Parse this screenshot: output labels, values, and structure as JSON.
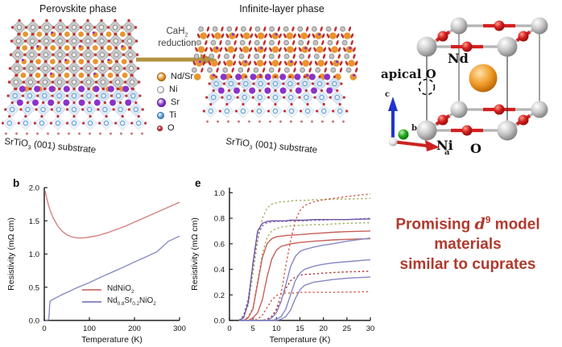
{
  "top": {
    "perovskite_title": "Perovskite phase",
    "infinite_title": "Infinite-layer phase",
    "substrate_label": "SrTiO<sub>3</sub> (001) substrate",
    "reaction": {
      "formula": "CaH<sub>2</sub>",
      "word": "reduction",
      "arrow_color": "#b3913f"
    },
    "legend": [
      {
        "name": "Nd/Sr",
        "color": "#e8952e",
        "edge": "#a05c08",
        "size": 9
      },
      {
        "name": "Ni",
        "color": "#f4f4f4",
        "edge": "#8f8f8f",
        "size": 7
      },
      {
        "name": "Sr",
        "color": "#8a33cc",
        "edge": "#55198c",
        "size": 9
      },
      {
        "name": "Ti",
        "color": "#5b9bd5",
        "edge": "#2a6ab8",
        "size": 7
      },
      {
        "name": "O",
        "color": "#c03030",
        "edge": "#8f1a1a",
        "size": 5
      }
    ],
    "unit_cell": {
      "labels": {
        "apical": "apical O",
        "nd": "Nd",
        "ni": "Ni",
        "o": "O",
        "axis_a": "a",
        "axis_b": "b",
        "axis_c": "c"
      },
      "colors": {
        "nd": "#f09a28",
        "ni": "#c9c9c9",
        "o": "#d42020",
        "axis_a": "#cc2222",
        "axis_b": "#22aa22",
        "axis_c": "#2233cc"
      }
    }
  },
  "chart_data": [
    {
      "type": "line",
      "panel": "b",
      "xlabel": "Temperature (K)",
      "ylabel": "Resistivity (mΩ cm)",
      "xlim": [
        0,
        300
      ],
      "ylim": [
        0,
        2
      ],
      "xticks": [
        0,
        100,
        200,
        300
      ],
      "xtick_labels": [
        "0",
        "100",
        "200",
        "300"
      ],
      "yticks": [
        0,
        0.5,
        1,
        1.5,
        2
      ],
      "ytick_labels": [
        "0.0",
        "0.5",
        "1.0",
        "1.5",
        "2.0"
      ],
      "grid": false,
      "legend": true,
      "legend_position": "lower right",
      "series": [
        {
          "name": "NdNiO<sub>2</sub>",
          "color": "#d4827e",
          "style": "solid",
          "x": [
            2,
            5,
            10,
            15,
            20,
            30,
            40,
            50,
            60,
            70,
            80,
            90,
            100,
            120,
            140,
            160,
            180,
            200,
            220,
            240,
            260,
            280,
            300
          ],
          "y": [
            1.95,
            1.85,
            1.72,
            1.62,
            1.54,
            1.42,
            1.34,
            1.29,
            1.26,
            1.245,
            1.24,
            1.245,
            1.255,
            1.28,
            1.32,
            1.37,
            1.42,
            1.48,
            1.54,
            1.6,
            1.66,
            1.72,
            1.78
          ]
        },
        {
          "name": "Nd<sub>0.8</sub>Sr<sub>0.2</sub>NiO<sub>2</sub>",
          "color": "#8a8ec4",
          "style": "solid",
          "x": [
            2,
            5,
            8,
            10,
            11,
            12,
            13,
            15,
            20,
            30,
            40,
            50,
            75,
            100,
            125,
            150,
            175,
            200,
            225,
            250,
            275,
            300
          ],
          "y": [
            0.004,
            0.004,
            0.006,
            0.03,
            0.12,
            0.24,
            0.29,
            0.305,
            0.32,
            0.355,
            0.39,
            0.42,
            0.5,
            0.57,
            0.65,
            0.725,
            0.8,
            0.88,
            0.955,
            1.035,
            1.19,
            1.27
          ]
        }
      ]
    },
    {
      "type": "line",
      "panel": "e",
      "xlabel": "Temperature (K)",
      "ylabel": "Resistivity (mΩ cm)",
      "xlim": [
        0,
        30
      ],
      "ylim": [
        0,
        1.04
      ],
      "xticks": [
        0,
        5,
        10,
        15,
        20,
        25,
        30
      ],
      "xtick_labels": [
        "0",
        "5",
        "10",
        "15",
        "20",
        "25",
        "30"
      ],
      "yticks": [
        0,
        0.2,
        0.4,
        0.6,
        0.8,
        1.0
      ],
      "ytick_labels": [
        "0.0",
        "0.2",
        "0.4",
        "0.6",
        "0.8",
        "1.0"
      ],
      "grid": false,
      "legend": false,
      "x": [
        2,
        3,
        4,
        5,
        6,
        7,
        8,
        9,
        10,
        11,
        12,
        13,
        14,
        15,
        16,
        18,
        20,
        22,
        25,
        30
      ],
      "series": [
        {
          "id": "dashed-green-1",
          "color": "#a0ae5c",
          "style": "dashed",
          "y": [
            0,
            0.03,
            0.12,
            0.37,
            0.62,
            0.8,
            0.88,
            0.91,
            0.92,
            0.93,
            0.93,
            0.935,
            0.94,
            0.94,
            0.94,
            0.945,
            0.945,
            0.95,
            0.95,
            0.955
          ]
        },
        {
          "id": "dashed-purple-1",
          "color": "#8a6ab8",
          "style": "dashed",
          "y": [
            0,
            0.04,
            0.17,
            0.42,
            0.67,
            0.74,
            0.765,
            0.77,
            0.775,
            0.775,
            0.775,
            0.78,
            0.78,
            0.78,
            0.78,
            0.785,
            0.785,
            0.79,
            0.79,
            0.8
          ]
        },
        {
          "id": "solid-purple-1",
          "color": "#6f55a0",
          "style": "solid",
          "y": [
            0,
            0.02,
            0.14,
            0.45,
            0.7,
            0.76,
            0.775,
            0.78,
            0.78,
            0.78,
            0.78,
            0.785,
            0.785,
            0.785,
            0.785,
            0.79,
            0.79,
            0.79,
            0.79,
            0.795
          ]
        },
        {
          "id": "dashed-green-2",
          "color": "#a0ae5c",
          "style": "dashed",
          "y": [
            0,
            0,
            0.03,
            0.1,
            0.31,
            0.52,
            0.65,
            0.7,
            0.72,
            0.73,
            0.735,
            0.74,
            0.74,
            0.745,
            0.745,
            0.75,
            0.75,
            0.755,
            0.76,
            0.765
          ]
        },
        {
          "id": "solid-red-1",
          "color": "#c65f5a",
          "style": "solid",
          "y": [
            0,
            0,
            0.02,
            0.09,
            0.29,
            0.49,
            0.6,
            0.64,
            0.655,
            0.66,
            0.665,
            0.667,
            0.67,
            0.672,
            0.675,
            0.68,
            0.685,
            0.69,
            0.695,
            0.7
          ]
        },
        {
          "id": "solid-red-2",
          "color": "#c65f5a",
          "style": "solid",
          "y": [
            0,
            0,
            0,
            0.02,
            0.06,
            0.16,
            0.34,
            0.48,
            0.55,
            0.58,
            0.59,
            0.6,
            0.605,
            0.61,
            0.613,
            0.62,
            0.625,
            0.63,
            0.635,
            0.64
          ]
        },
        {
          "id": "dashed-red-1",
          "color": "#cc5a47",
          "style": "dashed",
          "y": [
            0,
            0,
            0,
            0,
            0,
            0,
            0.01,
            0.03,
            0.09,
            0.21,
            0.43,
            0.62,
            0.78,
            0.86,
            0.9,
            0.93,
            0.945,
            0.955,
            0.97,
            0.99
          ]
        },
        {
          "id": "dashed-red-2",
          "color": "#cc5a47",
          "style": "dashed",
          "y": [
            0,
            0,
            0,
            0,
            0.01,
            0.04,
            0.1,
            0.16,
            0.195,
            0.21,
            0.215,
            0.215,
            0.215,
            0.22,
            0.22,
            0.22,
            0.22,
            0.22,
            0.222,
            0.225
          ]
        },
        {
          "id": "dashed-darkred-1",
          "color": "#a93a35",
          "style": "dashed",
          "y": [
            0,
            0,
            0,
            0,
            0,
            0,
            0.01,
            0.03,
            0.08,
            0.16,
            0.25,
            0.31,
            0.34,
            0.355,
            0.36,
            0.365,
            0.37,
            0.375,
            0.38,
            0.385
          ]
        },
        {
          "id": "solid-blue-1",
          "color": "#8587c2",
          "style": "solid",
          "y": [
            0,
            0,
            0,
            0,
            0,
            0,
            0,
            0.02,
            0.06,
            0.15,
            0.28,
            0.42,
            0.5,
            0.54,
            0.555,
            0.575,
            0.59,
            0.6,
            0.62,
            0.645
          ]
        },
        {
          "id": "solid-blue-2",
          "color": "#8587c2",
          "style": "solid",
          "y": [
            0,
            0,
            0,
            0,
            0,
            0,
            0,
            0,
            0.01,
            0.03,
            0.09,
            0.2,
            0.31,
            0.37,
            0.4,
            0.425,
            0.44,
            0.45,
            0.46,
            0.475
          ]
        },
        {
          "id": "solid-blue-3",
          "color": "#8587c2",
          "style": "solid",
          "y": [
            0,
            0,
            0,
            0,
            0,
            0,
            0,
            0,
            0,
            0.01,
            0.03,
            0.08,
            0.17,
            0.24,
            0.275,
            0.3,
            0.31,
            0.32,
            0.33,
            0.34
          ]
        }
      ]
    }
  ],
  "note": {
    "text_html": "Promising <i>d</i><sup>9</sup> model<br>materials<br>similar to cuprates",
    "color": "#b03a2e"
  }
}
